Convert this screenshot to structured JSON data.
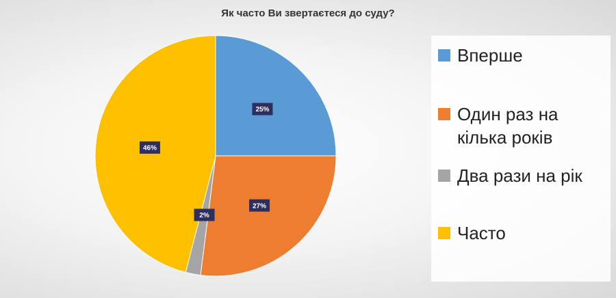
{
  "chart_data": {
    "type": "pie",
    "title": "Як часто Ви звертаєтеся до суду?",
    "categories": [
      "Вперше",
      "Один раз на кілька років",
      "Два рази на рік",
      "Часто"
    ],
    "values": [
      25,
      27,
      2,
      46
    ],
    "value_labels": [
      "25%",
      "27%",
      "2%",
      "46%"
    ],
    "colors": [
      "#5b9bd5",
      "#ed7d31",
      "#a5a5a5",
      "#ffc000"
    ]
  }
}
